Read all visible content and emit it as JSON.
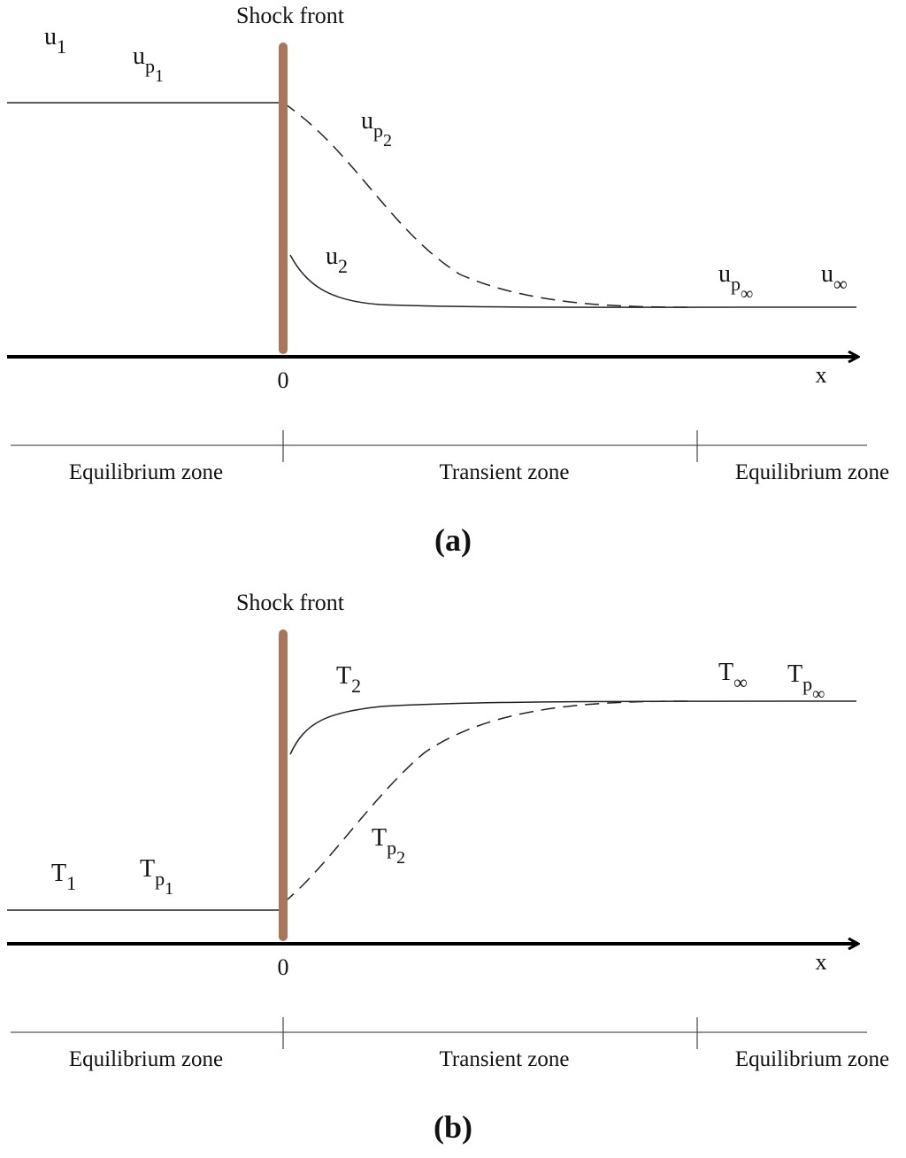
{
  "panels": [
    {
      "shock_front": "Shock front",
      "origin": "0",
      "axis": "x",
      "labels": [
        {
          "base": "u",
          "sub": "1"
        },
        {
          "base": "u",
          "sub": "p",
          "subsub": "1"
        },
        {
          "base": "u",
          "sub": "p",
          "subsub": "2"
        },
        {
          "base": "u",
          "sub": "2"
        },
        {
          "base": "u",
          "sub": "p",
          "subsub": "∞"
        },
        {
          "base": "u",
          "sub": "∞"
        }
      ],
      "zones": [
        "Equilibrium zone",
        "Transient zone",
        "Equilibrium zone"
      ],
      "caption": "(a)"
    },
    {
      "shock_front": "Shock front",
      "origin": "0",
      "axis": "x",
      "labels": [
        {
          "base": "T",
          "sub": "2"
        },
        {
          "base": "T",
          "sub": "∞"
        },
        {
          "base": "T",
          "sub": "p",
          "subsub": "∞"
        },
        {
          "base": "T",
          "sub": "p",
          "subsub": "2"
        },
        {
          "base": "T",
          "sub": "1"
        },
        {
          "base": "T",
          "sub": "p",
          "subsub": "1"
        }
      ],
      "zones": [
        "Equilibrium zone",
        "Transient zone",
        "Equilibrium zone"
      ],
      "caption": "(b)"
    }
  ]
}
